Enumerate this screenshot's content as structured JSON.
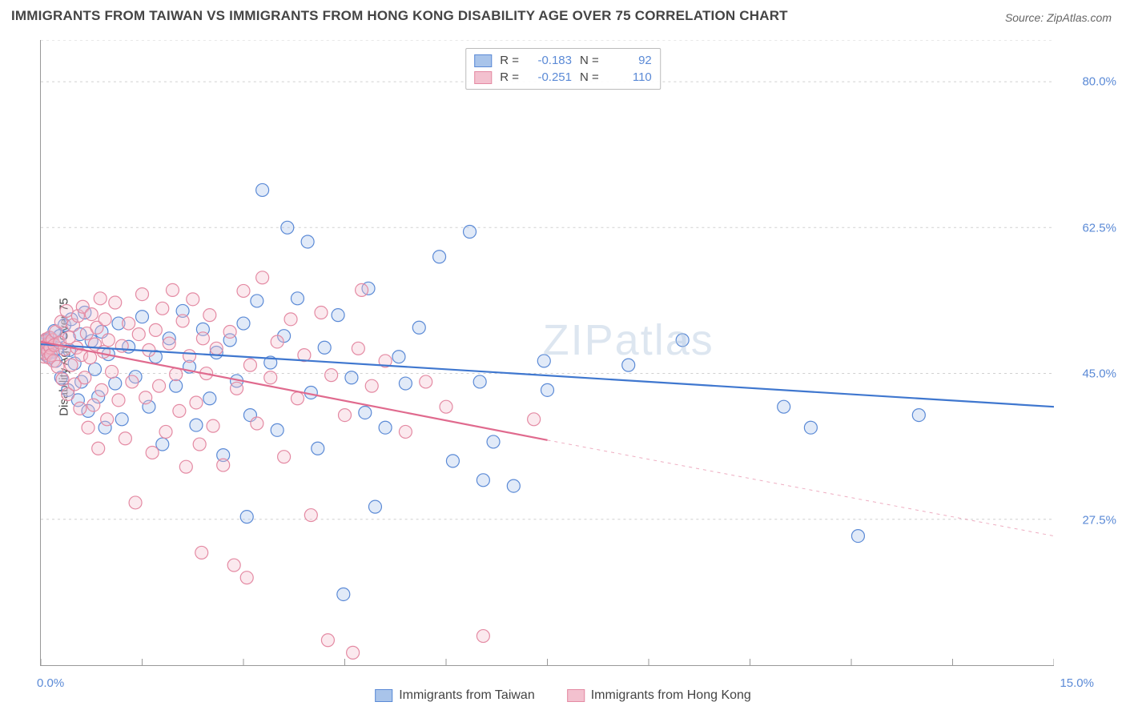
{
  "title": "IMMIGRANTS FROM TAIWAN VS IMMIGRANTS FROM HONG KONG DISABILITY AGE OVER 75 CORRELATION CHART",
  "source_label": "Source: ZipAtlas.com",
  "ylabel": "Disability Age Over 75",
  "watermark": "ZIPatlas",
  "chart": {
    "type": "scatter-with-trendlines",
    "background_color": "#ffffff",
    "grid_color": "#d0d0d0",
    "grid_dash": "3,4",
    "axis_color": "#999999",
    "xlim": [
      0.0,
      15.0
    ],
    "ylim": [
      10.0,
      85.0
    ],
    "x_tick_positions": [
      0.0,
      1.5,
      3.0,
      4.5,
      6.0,
      7.5,
      9.0,
      10.5,
      12.0,
      13.5,
      15.0
    ],
    "x_tick_labels_shown": {
      "left": "0.0%",
      "right": "15.0%"
    },
    "y_grid_values": [
      27.5,
      45.0,
      62.5,
      80.0
    ],
    "y_tick_labels": [
      "27.5%",
      "45.0%",
      "62.5%",
      "80.0%"
    ],
    "y_label_color": "#5b8ad6",
    "marker_radius": 8,
    "marker_stroke_width": 1.2,
    "marker_fill_opacity": 0.35,
    "trendline_width": 2.2,
    "series": [
      {
        "key": "taiwan",
        "label": "Immigrants from Taiwan",
        "color_stroke": "#5b8ad6",
        "color_fill": "#a9c4ea",
        "trendline_color": "#3f77cf",
        "R": "-0.183",
        "N": "92",
        "trendline": {
          "x1": 0.0,
          "y1": 48.5,
          "x2": 15.0,
          "y2": 41.0
        },
        "trend_extrap": null,
        "points": [
          [
            0.05,
            48.5
          ],
          [
            0.06,
            47.8
          ],
          [
            0.07,
            48.9
          ],
          [
            0.08,
            47.2
          ],
          [
            0.09,
            49.0
          ],
          [
            0.1,
            48.1
          ],
          [
            0.11,
            47.5
          ],
          [
            0.12,
            48.7
          ],
          [
            0.13,
            47.0
          ],
          [
            0.14,
            48.3
          ],
          [
            0.15,
            49.2
          ],
          [
            0.18,
            47.6
          ],
          [
            0.2,
            50.1
          ],
          [
            0.22,
            46.5
          ],
          [
            0.25,
            48.0
          ],
          [
            0.28,
            49.5
          ],
          [
            0.3,
            44.5
          ],
          [
            0.35,
            50.8
          ],
          [
            0.4,
            43.0
          ],
          [
            0.42,
            47.8
          ],
          [
            0.45,
            51.5
          ],
          [
            0.5,
            46.2
          ],
          [
            0.55,
            41.8
          ],
          [
            0.58,
            49.7
          ],
          [
            0.6,
            44.0
          ],
          [
            0.65,
            52.3
          ],
          [
            0.7,
            40.5
          ],
          [
            0.75,
            48.9
          ],
          [
            0.8,
            45.5
          ],
          [
            0.85,
            42.2
          ],
          [
            0.9,
            50.0
          ],
          [
            0.95,
            38.5
          ],
          [
            1.0,
            47.3
          ],
          [
            1.1,
            43.8
          ],
          [
            1.15,
            51.0
          ],
          [
            1.2,
            39.5
          ],
          [
            1.3,
            48.2
          ],
          [
            1.4,
            44.6
          ],
          [
            1.5,
            51.8
          ],
          [
            1.6,
            41.0
          ],
          [
            1.7,
            47.0
          ],
          [
            1.8,
            36.5
          ],
          [
            1.9,
            49.2
          ],
          [
            2.0,
            43.5
          ],
          [
            2.1,
            52.5
          ],
          [
            2.2,
            45.8
          ],
          [
            2.3,
            38.8
          ],
          [
            2.4,
            50.3
          ],
          [
            2.5,
            42.0
          ],
          [
            2.6,
            47.5
          ],
          [
            2.7,
            35.2
          ],
          [
            2.8,
            49.0
          ],
          [
            2.9,
            44.1
          ],
          [
            3.0,
            51.0
          ],
          [
            3.05,
            27.8
          ],
          [
            3.1,
            40.0
          ],
          [
            3.2,
            53.7
          ],
          [
            3.28,
            67.0
          ],
          [
            3.4,
            46.3
          ],
          [
            3.5,
            38.2
          ],
          [
            3.6,
            49.5
          ],
          [
            3.65,
            62.5
          ],
          [
            3.8,
            54.0
          ],
          [
            3.95,
            60.8
          ],
          [
            4.0,
            42.7
          ],
          [
            4.1,
            36.0
          ],
          [
            4.2,
            48.1
          ],
          [
            4.4,
            52.0
          ],
          [
            4.48,
            18.5
          ],
          [
            4.6,
            44.5
          ],
          [
            4.8,
            40.3
          ],
          [
            4.85,
            55.2
          ],
          [
            4.95,
            29.0
          ],
          [
            5.1,
            38.5
          ],
          [
            5.3,
            47.0
          ],
          [
            5.4,
            43.8
          ],
          [
            5.6,
            50.5
          ],
          [
            5.9,
            59.0
          ],
          [
            6.1,
            34.5
          ],
          [
            6.35,
            62.0
          ],
          [
            6.5,
            44.0
          ],
          [
            6.55,
            32.2
          ],
          [
            6.7,
            36.8
          ],
          [
            7.0,
            31.5
          ],
          [
            7.45,
            46.5
          ],
          [
            7.5,
            43.0
          ],
          [
            8.7,
            46.0
          ],
          [
            9.5,
            49.0
          ],
          [
            11.0,
            41.0
          ],
          [
            11.4,
            38.5
          ],
          [
            12.1,
            25.5
          ],
          [
            13.0,
            40.0
          ]
        ]
      },
      {
        "key": "hongkong",
        "label": "Immigrants from Hong Kong",
        "color_stroke": "#e48aa3",
        "color_fill": "#f3c1cf",
        "trendline_color": "#e06a8e",
        "R": "-0.251",
        "N": "110",
        "trendline": {
          "x1": 0.0,
          "y1": 48.8,
          "x2": 7.5,
          "y2": 37.0
        },
        "trend_extrap": {
          "x1": 7.5,
          "y1": 37.0,
          "x2": 15.0,
          "y2": 25.5
        },
        "points": [
          [
            0.04,
            48.2
          ],
          [
            0.05,
            47.0
          ],
          [
            0.06,
            48.8
          ],
          [
            0.07,
            47.4
          ],
          [
            0.08,
            49.1
          ],
          [
            0.09,
            48.0
          ],
          [
            0.1,
            47.6
          ],
          [
            0.11,
            48.5
          ],
          [
            0.12,
            46.9
          ],
          [
            0.13,
            49.3
          ],
          [
            0.14,
            48.1
          ],
          [
            0.15,
            47.2
          ],
          [
            0.17,
            49.0
          ],
          [
            0.19,
            46.5
          ],
          [
            0.2,
            48.4
          ],
          [
            0.22,
            50.0
          ],
          [
            0.25,
            45.8
          ],
          [
            0.28,
            48.7
          ],
          [
            0.3,
            51.2
          ],
          [
            0.32,
            44.3
          ],
          [
            0.35,
            47.9
          ],
          [
            0.38,
            52.5
          ],
          [
            0.4,
            42.5
          ],
          [
            0.42,
            49.3
          ],
          [
            0.45,
            46.0
          ],
          [
            0.48,
            50.8
          ],
          [
            0.5,
            43.7
          ],
          [
            0.53,
            48.1
          ],
          [
            0.55,
            51.9
          ],
          [
            0.58,
            40.8
          ],
          [
            0.6,
            47.2
          ],
          [
            0.62,
            53.0
          ],
          [
            0.65,
            44.5
          ],
          [
            0.68,
            49.8
          ],
          [
            0.7,
            38.5
          ],
          [
            0.73,
            46.9
          ],
          [
            0.75,
            52.1
          ],
          [
            0.78,
            41.2
          ],
          [
            0.8,
            48.5
          ],
          [
            0.83,
            50.5
          ],
          [
            0.85,
            36.0
          ],
          [
            0.88,
            54.0
          ],
          [
            0.9,
            43.0
          ],
          [
            0.93,
            47.6
          ],
          [
            0.95,
            51.5
          ],
          [
            0.98,
            39.5
          ],
          [
            1.0,
            49.0
          ],
          [
            1.05,
            45.2
          ],
          [
            1.1,
            53.5
          ],
          [
            1.15,
            41.8
          ],
          [
            1.2,
            48.3
          ],
          [
            1.25,
            37.2
          ],
          [
            1.3,
            51.0
          ],
          [
            1.35,
            44.0
          ],
          [
            1.4,
            29.5
          ],
          [
            1.45,
            49.7
          ],
          [
            1.5,
            54.5
          ],
          [
            1.55,
            42.1
          ],
          [
            1.6,
            47.8
          ],
          [
            1.65,
            35.5
          ],
          [
            1.7,
            50.2
          ],
          [
            1.75,
            43.5
          ],
          [
            1.8,
            52.8
          ],
          [
            1.85,
            38.0
          ],
          [
            1.9,
            48.6
          ],
          [
            1.95,
            55.0
          ],
          [
            2.0,
            44.9
          ],
          [
            2.05,
            40.5
          ],
          [
            2.1,
            51.3
          ],
          [
            2.15,
            33.8
          ],
          [
            2.2,
            47.1
          ],
          [
            2.25,
            53.9
          ],
          [
            2.3,
            41.5
          ],
          [
            2.35,
            36.5
          ],
          [
            2.38,
            23.5
          ],
          [
            2.4,
            49.2
          ],
          [
            2.45,
            45.0
          ],
          [
            2.5,
            52.0
          ],
          [
            2.55,
            38.7
          ],
          [
            2.6,
            48.0
          ],
          [
            2.7,
            34.0
          ],
          [
            2.8,
            50.0
          ],
          [
            2.86,
            22.0
          ],
          [
            2.9,
            43.2
          ],
          [
            3.0,
            54.9
          ],
          [
            3.05,
            20.5
          ],
          [
            3.1,
            46.0
          ],
          [
            3.2,
            39.0
          ],
          [
            3.28,
            56.5
          ],
          [
            3.4,
            44.5
          ],
          [
            3.5,
            48.8
          ],
          [
            3.6,
            35.0
          ],
          [
            3.7,
            51.5
          ],
          [
            3.8,
            42.0
          ],
          [
            3.9,
            47.2
          ],
          [
            4.0,
            28.0
          ],
          [
            4.15,
            52.3
          ],
          [
            4.25,
            13.0
          ],
          [
            4.3,
            44.8
          ],
          [
            4.5,
            40.0
          ],
          [
            4.62,
            11.5
          ],
          [
            4.7,
            48.0
          ],
          [
            4.75,
            55.0
          ],
          [
            4.9,
            43.5
          ],
          [
            5.1,
            46.5
          ],
          [
            5.4,
            38.0
          ],
          [
            5.7,
            44.0
          ],
          [
            6.0,
            41.0
          ],
          [
            6.55,
            13.5
          ],
          [
            7.3,
            39.5
          ]
        ]
      }
    ]
  },
  "legend_top": {
    "r_label": "R =",
    "n_label": "N ="
  },
  "colors": {
    "title": "#444444",
    "source": "#666666",
    "tick_label": "#5b8ad6"
  }
}
